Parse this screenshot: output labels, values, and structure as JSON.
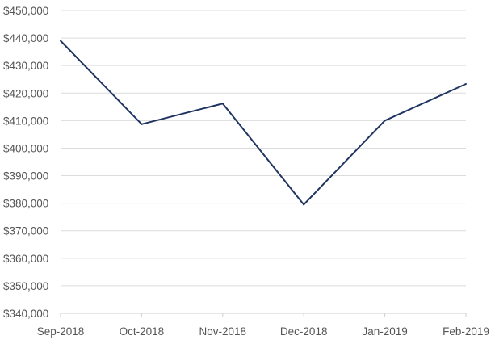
{
  "chart_data": {
    "type": "line",
    "categories": [
      "Sep-2018",
      "Oct-2018",
      "Nov-2018",
      "Dec-2018",
      "Jan-2019",
      "Feb-2019"
    ],
    "series": [
      {
        "values": [
          439000,
          408700,
          416200,
          379500,
          410000,
          423300
        ]
      }
    ],
    "y_tick_labels": [
      "$340,000",
      "$350,000",
      "$360,000",
      "$370,000",
      "$380,000",
      "$390,000",
      "$400,000",
      "$410,000",
      "$420,000",
      "$430,000",
      "$440,000",
      "$450,000"
    ],
    "ylim": [
      340000,
      450000
    ],
    "y_tick_step": 10000,
    "title": "",
    "xlabel": "",
    "ylabel": "",
    "grid": "horizontal",
    "legend": "none",
    "line_color": "#1f3461"
  }
}
